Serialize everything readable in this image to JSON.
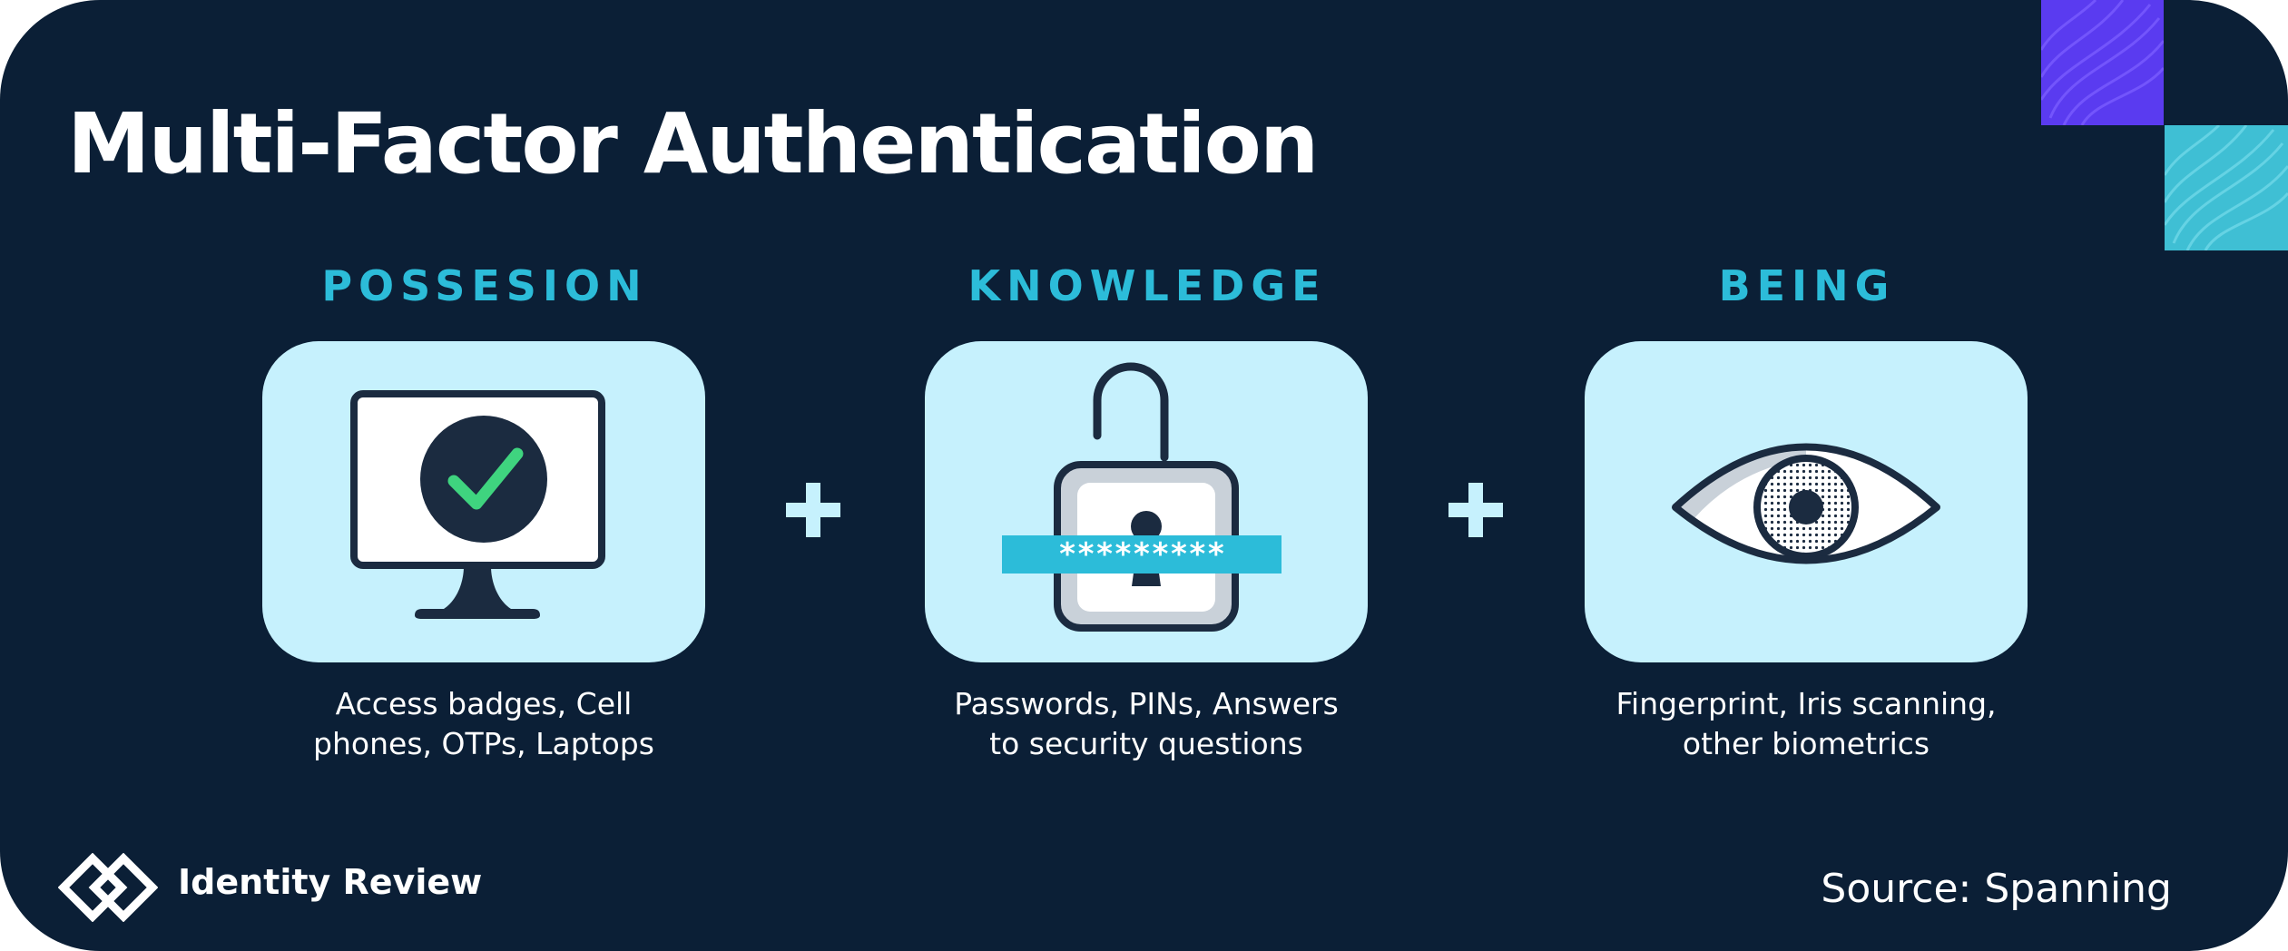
{
  "title": "Multi-Factor Authentication",
  "factors": [
    {
      "heading": "POSSESION",
      "description_line1": "Access badges, Cell",
      "description_line2": "phones, OTPs, Laptops",
      "icon": "monitor-checkmark-icon"
    },
    {
      "heading": "KNOWLEDGE",
      "description_line1": "Passwords, PINs, Answers",
      "description_line2": "to security questions",
      "icon": "open-padlock-icon",
      "password_mask": "*********"
    },
    {
      "heading": "BEING",
      "description_line1": "Fingerprint, Iris scanning,",
      "description_line2": "other biometrics",
      "icon": "eye-icon"
    }
  ],
  "operators": [
    "+",
    "+"
  ],
  "footer": {
    "brand": "Identity Review",
    "source": "Source: Spanning"
  },
  "colors": {
    "background": "#0b1f36",
    "accent": "#2cbcd9",
    "panel": "#c6f1fd",
    "check": "#3fd47f",
    "corner_purple": "#5a3bf0",
    "corner_teal": "#3fbfd4"
  }
}
